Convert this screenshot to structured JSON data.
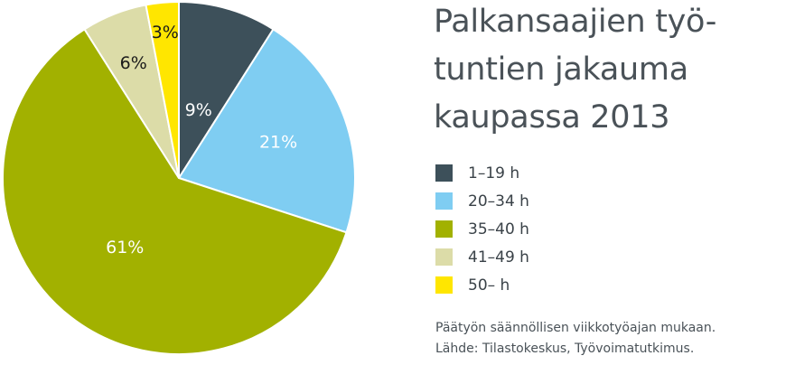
{
  "chart_data": {
    "type": "pie",
    "title_lines": [
      "Palkansaajien työ-",
      "tuntien jakauma",
      "kaupassa 2013"
    ],
    "slices": [
      {
        "name": "1–19 h",
        "value": 9,
        "label": "9%",
        "color": "#3d505a",
        "label_color": "#ffffff"
      },
      {
        "name": "20–34 h",
        "value": 21,
        "label": "21%",
        "color": "#7fcdf2",
        "label_color": "#ffffff"
      },
      {
        "name": "35–40 h",
        "value": 61,
        "label": "61%",
        "color": "#a2b100",
        "label_color": "#ffffff"
      },
      {
        "name": "41–49 h",
        "value": 6,
        "label": "6%",
        "color": "#dcdca8",
        "label_color": "#1a1a1a"
      },
      {
        "name": "50– h",
        "value": 3,
        "label": "3%",
        "color": "#ffe600",
        "label_color": "#1a1a1a"
      }
    ],
    "legend_placement": "right"
  },
  "footnote": {
    "line1": "Päätyön säännöllisen viikkotyöajan mukaan.",
    "line2": "Lähde: Tilastokeskus, Työvoimatutkimus."
  }
}
